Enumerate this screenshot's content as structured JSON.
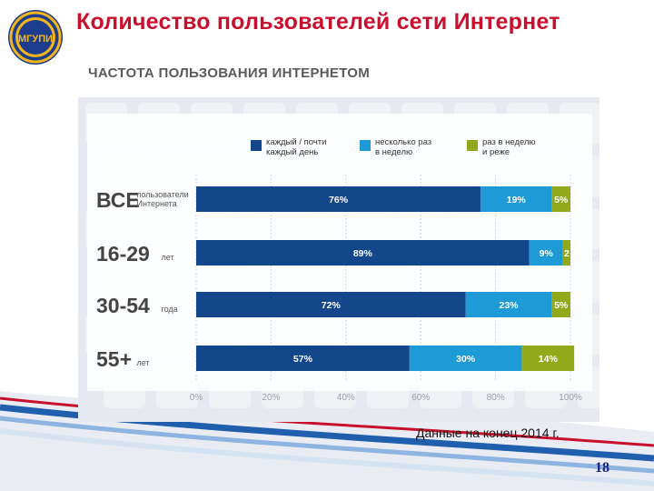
{
  "slide": {
    "title": "Количество пользователей сети Интернет",
    "subtitle": "ЧАСТОТА ПОЛЬЗОВАНИЯ ИНТЕРНЕТОМ",
    "logo_text": "МГУПИ",
    "footnote": "Данные на конец 2014 г.",
    "page_number": "18"
  },
  "colors": {
    "title": "#c8102e",
    "series": [
      "#14468c",
      "#1e9ad6",
      "#93a91c"
    ],
    "chart_bg": "#e6eaf0"
  },
  "chart_data": {
    "type": "bar",
    "orientation": "horizontal",
    "stacked": true,
    "categories": [
      {
        "big": "ВСЕ",
        "small": "пользователи\nИнтернета"
      },
      {
        "big": "16-29",
        "small": "лет"
      },
      {
        "big": "30-54",
        "small": "года"
      },
      {
        "big": "55+",
        "small": "лет"
      }
    ],
    "series": [
      {
        "name": "каждый / почти\nкаждый день",
        "values": [
          76,
          89,
          72,
          57
        ],
        "labels": [
          "76%",
          "89%",
          "72%",
          "57%"
        ]
      },
      {
        "name": "несколько раз\nв неделю",
        "values": [
          19,
          9,
          23,
          30
        ],
        "labels": [
          "19%",
          "9%",
          "23%",
          "30%"
        ]
      },
      {
        "name": "раз в неделю\nи реже",
        "values": [
          5,
          2,
          5,
          14
        ],
        "labels": [
          "5%",
          "2",
          "5%",
          "14%"
        ]
      }
    ],
    "xlim": [
      0,
      100
    ],
    "x_ticks": [
      "0%",
      "20%",
      "40%",
      "60%",
      "80%",
      "100%"
    ],
    "x_tick_values": [
      0,
      20,
      40,
      60,
      80,
      100
    ],
    "grid": true,
    "legend_position": "top"
  }
}
